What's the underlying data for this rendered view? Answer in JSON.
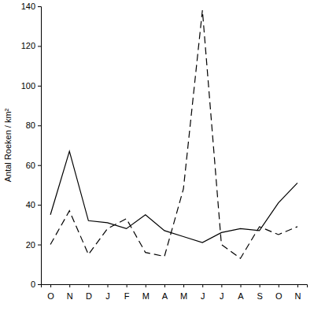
{
  "chart_data": {
    "type": "line",
    "y_label": "Antal Roeken / km²",
    "categories": [
      "O",
      "N",
      "D",
      "J",
      "F",
      "M",
      "A",
      "M",
      "J",
      "J",
      "A",
      "S",
      "O",
      "N"
    ],
    "series": [
      {
        "color": "#000000",
        "line_style": "solid",
        "values": [
          35,
          67,
          32,
          31,
          28,
          35,
          27,
          24,
          21,
          26,
          28,
          27,
          41,
          51
        ]
      },
      {
        "color": "#000000",
        "line_style": "dashed",
        "values": [
          20,
          37,
          15,
          28,
          33,
          16,
          14,
          48,
          138,
          20,
          13,
          29,
          25,
          29
        ]
      }
    ],
    "ylim": [
      0,
      140
    ],
    "yticks": [
      0,
      20,
      40,
      60,
      80,
      100,
      120,
      140
    ],
    "grid": false
  }
}
